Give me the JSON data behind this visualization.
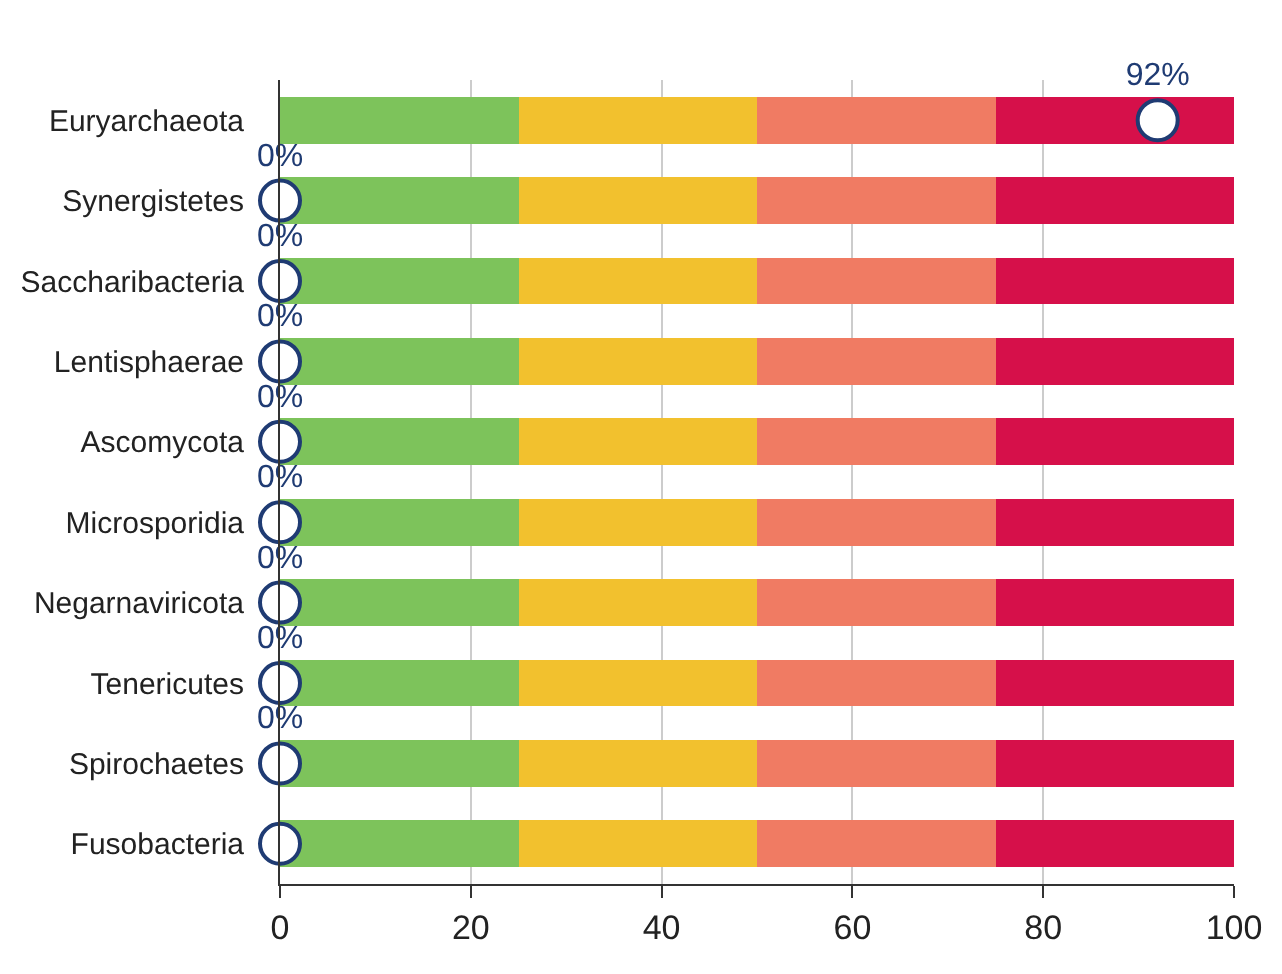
{
  "chart_data": {
    "type": "bar",
    "orientation": "horizontal",
    "stacked": true,
    "categories": [
      "Euryarchaeota",
      "Synergistetes",
      "Saccharibacteria",
      "Lentisphaerae",
      "Ascomycota",
      "Microsporidia",
      "Negarnaviricota",
      "Tenericutes",
      "Spirochaetes",
      "Fusobacteria"
    ],
    "series": [
      {
        "color": "#7dc35b",
        "values": [
          25,
          25,
          25,
          25,
          25,
          25,
          25,
          25,
          25,
          25
        ]
      },
      {
        "color": "#f2c12e",
        "values": [
          25,
          25,
          25,
          25,
          25,
          25,
          25,
          25,
          25,
          25
        ]
      },
      {
        "color": "#f07b63",
        "values": [
          25,
          25,
          25,
          25,
          25,
          25,
          25,
          25,
          25,
          25
        ]
      },
      {
        "color": "#d6104a",
        "values": [
          25,
          25,
          25,
          25,
          25,
          25,
          25,
          25,
          25,
          25
        ]
      },
      {
        "type": "scatter",
        "marker": "circle",
        "color": "#1f3b73",
        "values": [
          92,
          0,
          0,
          0,
          0,
          0,
          0,
          0,
          0,
          0
        ],
        "value_labels": [
          "92%",
          "0%",
          "0%",
          "0%",
          "0%",
          "0%",
          "0%",
          "0%",
          "0%",
          null
        ]
      }
    ],
    "xlim": [
      0,
      100
    ],
    "xticks": [
      0,
      20,
      40,
      60,
      80,
      100
    ],
    "grid": "x"
  }
}
